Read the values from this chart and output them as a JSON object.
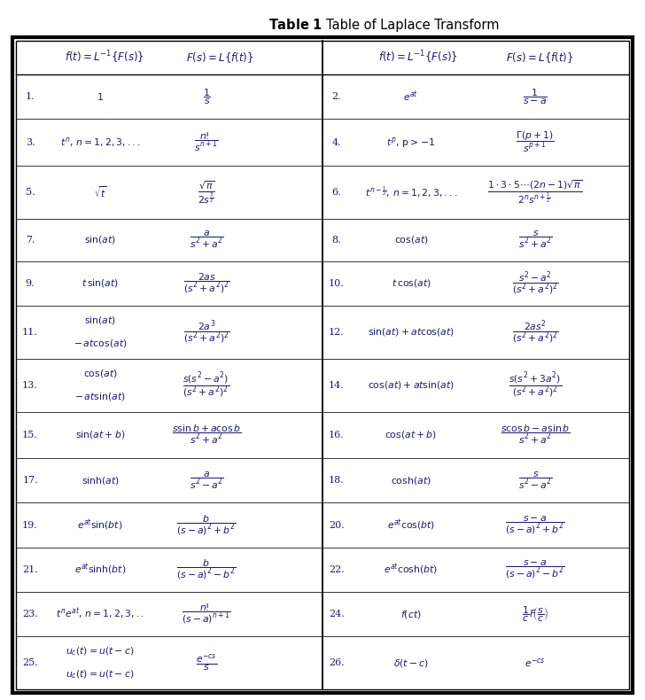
{
  "bg_color": "#ffffff",
  "text_color": "#1a1a6e",
  "rows": [
    [
      "1.",
      "$1$",
      "$\\dfrac{1}{s}$",
      "2.",
      "$e^{at}$",
      "$\\dfrac{1}{s-a}$"
    ],
    [
      "3.",
      "$t^{n},\\,n=1,2,3,...$",
      "$\\dfrac{n!}{s^{n+1}}$",
      "4.",
      "$t^{p},\\,\\mathrm{p>\\!-\\!1}$",
      "$\\dfrac{\\Gamma(p+1)}{s^{p+1}}$"
    ],
    [
      "5.",
      "$\\sqrt{t}$",
      "$\\dfrac{\\sqrt{\\pi}}{2s^{\\frac{3}{2}}}$",
      "6.",
      "$t^{n-\\frac{1}{2}},\\,n=1,2,3,...$",
      "$\\dfrac{1\\cdot3\\cdot5\\cdots(2n-1)\\sqrt{\\pi}}{2^{n}s^{n+\\frac{1}{2}}}$"
    ],
    [
      "7.",
      "$\\sin(at)$",
      "$\\dfrac{a}{s^{2}+a^{2}}$",
      "8.",
      "$\\cos(at)$",
      "$\\dfrac{s}{s^{2}+a^{2}}$"
    ],
    [
      "9.",
      "$t\\,\\sin(at)$",
      "$\\dfrac{2as}{(s^{2}+a^{2})^{2}}$",
      "10.",
      "$t\\,\\cos(at)$",
      "$\\dfrac{s^{2}-a^{2}}{(s^{2}+a^{2})^{2}}$"
    ],
    [
      "11.",
      "$\\sin(at)$|||$-\\,at\\cos(at)$",
      "$\\dfrac{2a^{3}}{(s^{2}+a^{2})^{2}}$",
      "12.",
      "$\\sin(at)+at\\cos(at)$",
      "$\\dfrac{2as^{2}}{(s^{2}+a^{2})^{2}}$"
    ],
    [
      "13.",
      "$\\cos(at)$|||$-\\,at\\sin(at)$",
      "$\\dfrac{s(s^{2}-a^{2})}{(s^{2}+a^{2})^{2}}$",
      "14.",
      "$\\cos(at)+at\\sin(at)$",
      "$\\dfrac{s(s^{2}+3a^{2})}{(s^{2}+a^{2})^{2}}$"
    ],
    [
      "15.",
      "$\\sin(at+b)$",
      "$\\dfrac{s\\sin b+a\\cos b}{s^{2}+a^{2}}$",
      "16.",
      "$\\cos(at+b)$",
      "$\\dfrac{s\\cos b-a\\sin b}{s^{2}+a^{2}}$"
    ],
    [
      "17.",
      "$\\sinh(at)$",
      "$\\dfrac{a}{s^{2}-a^{2}}$",
      "18.",
      "$\\cosh(at)$",
      "$\\dfrac{s}{s^{2}-a^{2}}$"
    ],
    [
      "19.",
      "$e^{at}\\sin(bt)$",
      "$\\dfrac{b}{(s-a)^{2}+b^{2}}$",
      "20.",
      "$e^{at}\\cos(bt)$",
      "$\\dfrac{s-a}{(s-a)^{2}+b^{2}}$"
    ],
    [
      "21.",
      "$e^{at}\\sinh(bt)$",
      "$\\dfrac{b}{(s-a)^{2}-b^{2}}$",
      "22.",
      "$e^{at}\\cosh(bt)$",
      "$\\dfrac{s-a}{(s-a)^{2}-b^{2}}$"
    ],
    [
      "23.",
      "$t^{n}e^{at},\\,n=1,2,3,..$",
      "$\\dfrac{n!}{(s-a)^{n+1}}$",
      "24.",
      "$f(ct)$",
      "$\\dfrac{1}{c}F\\!\\left(\\dfrac{s}{c}\\right)$"
    ],
    [
      "25.",
      "$u_{c}(t)=u(t-c)$|||$u_{c}(t)=u(t-c)$",
      "$\\dfrac{e^{-cs}}{s}$",
      "26.",
      "$\\delta(t-c)$",
      "$e^{-cs}$"
    ]
  ],
  "row_weights": [
    1.05,
    1.1,
    1.25,
    1.0,
    1.05,
    1.25,
    1.25,
    1.1,
    1.05,
    1.05,
    1.05,
    1.05,
    1.25
  ],
  "header_l1": "$f(t) = L^{-1}\\{F(s)\\}$",
  "header_l2": "$F(s) = L\\{f(t)\\}$",
  "header_r1": "$f(t) = L^{-1}\\{F(s)\\}$",
  "header_r2": "$F(s) = L\\{f(t)\\}$",
  "title_bold": "Table 1",
  "title_normal": "  Table of Laplace Transform"
}
